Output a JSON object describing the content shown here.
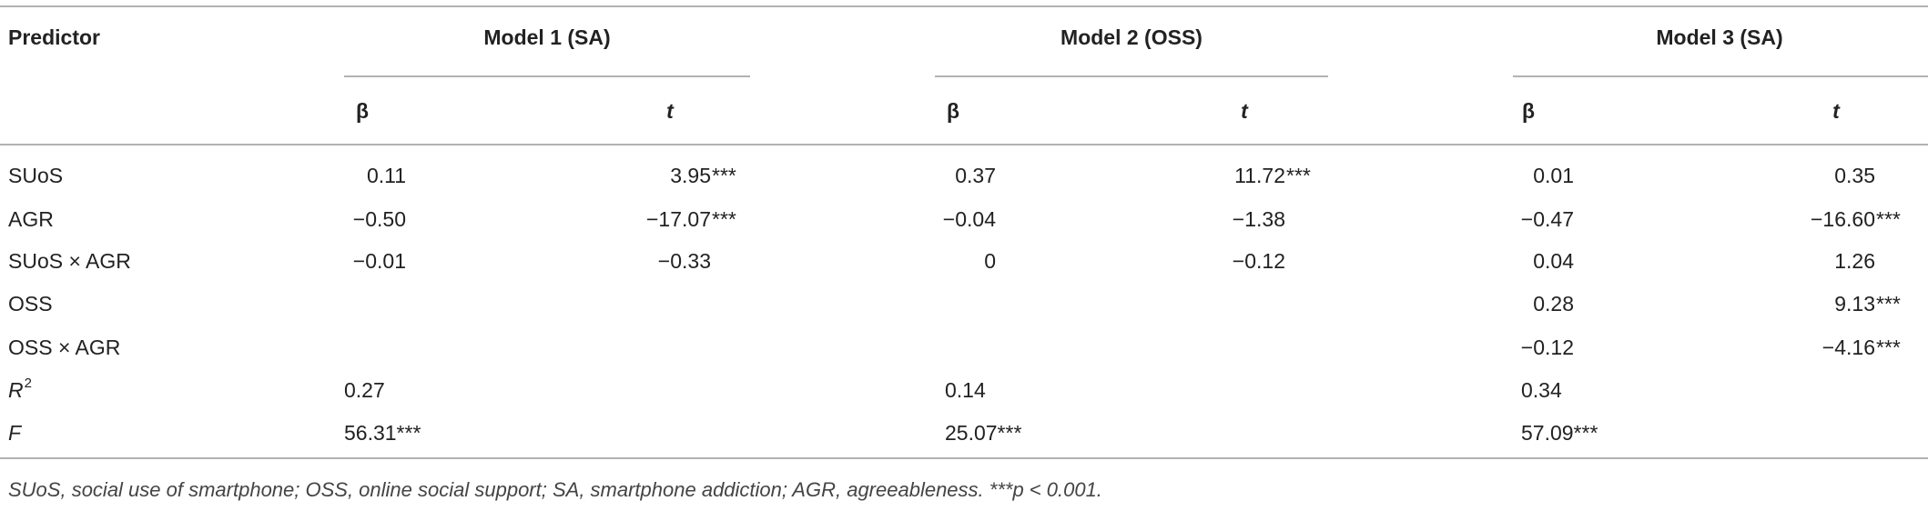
{
  "table": {
    "header": {
      "predictor": "Predictor",
      "models": [
        "Model 1 (SA)",
        "Model 2 (OSS)",
        "Model 3 (SA)"
      ],
      "sub": [
        [
          "β",
          "t"
        ],
        [
          "β",
          "t"
        ],
        [
          "β",
          "t"
        ]
      ]
    },
    "rows": [
      {
        "label": "SUoS",
        "cells": [
          {
            "text": "0.11"
          },
          {
            "text": "3.95",
            "note": "***"
          },
          {
            "text": "0.37"
          },
          {
            "text": "11.72",
            "note": "***"
          },
          {
            "text": "0.01"
          },
          {
            "text": "0.35"
          }
        ]
      },
      {
        "label": "AGR",
        "cells": [
          {
            "text": "−0.50"
          },
          {
            "text": "−17.07",
            "note": "***"
          },
          {
            "text": "−0.04"
          },
          {
            "text": "−1.38"
          },
          {
            "text": "−0.47"
          },
          {
            "text": "−16.60",
            "note": "***"
          }
        ]
      },
      {
        "label": "SUoS × AGR",
        "cells": [
          {
            "text": "−0.01"
          },
          {
            "text": "−0.33"
          },
          {
            "text": "0"
          },
          {
            "text": "−0.12"
          },
          {
            "text": "0.04"
          },
          {
            "text": "1.26"
          }
        ]
      },
      {
        "label": "OSS",
        "cells": [
          null,
          null,
          null,
          null,
          {
            "text": "0.28"
          },
          {
            "text": "9.13",
            "note": "***"
          }
        ]
      },
      {
        "label": "OSS × AGR",
        "cells": [
          null,
          null,
          null,
          null,
          {
            "text": "−0.12"
          },
          {
            "text": "−4.16",
            "note": "***"
          }
        ]
      }
    ],
    "fit_rows": [
      {
        "label": "R",
        "sup": "2",
        "cells": [
          "0.27",
          "0.14",
          "0.34"
        ]
      },
      {
        "label": "F",
        "cells": [
          "56.31***",
          "25.07***",
          "57.09***"
        ]
      }
    ],
    "footnote": "SUoS, social use of smartphone; OSS, online social support; SA, smartphone addiction; AGR, agreeableness. ***p < 0.001."
  }
}
